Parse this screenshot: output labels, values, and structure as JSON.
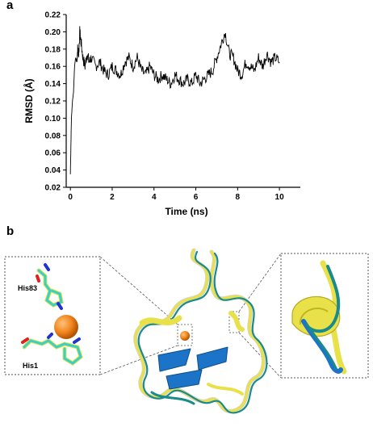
{
  "panels": {
    "a": "a",
    "b": "b"
  },
  "chart_data": {
    "type": "line",
    "xlabel": "Time (ns)",
    "ylabel": "RMSD (Å)",
    "xlim": [
      -0.2,
      11
    ],
    "ylim": [
      0.02,
      0.22
    ],
    "xticks": [
      0,
      2,
      4,
      6,
      8,
      10
    ],
    "yticks": [
      0.02,
      0.04,
      0.06,
      0.08,
      0.1,
      0.12,
      0.14,
      0.16,
      0.18,
      0.2,
      0.22
    ],
    "ytick_labels": [
      "0.02",
      "0.04",
      "0.06",
      "0.08",
      "0.10",
      "0.12",
      "0.14",
      "0.16",
      "0.18",
      "0.20",
      "0.22"
    ],
    "grid": false,
    "series": [
      {
        "color": "#000000",
        "x": [
          0,
          0.05,
          0.1,
          0.15,
          0.2,
          0.25,
          0.3,
          0.35,
          0.4,
          0.45,
          0.5,
          0.6,
          0.7,
          0.8,
          0.9,
          1.0,
          1.2,
          1.4,
          1.6,
          1.8,
          2.0,
          2.2,
          2.4,
          2.6,
          2.8,
          3.0,
          3.2,
          3.4,
          3.6,
          3.8,
          4.0,
          4.2,
          4.4,
          4.6,
          4.8,
          5.0,
          5.2,
          5.4,
          5.6,
          5.8,
          6.0,
          6.2,
          6.4,
          6.6,
          6.8,
          7.0,
          7.2,
          7.4,
          7.6,
          7.8,
          8.0,
          8.2,
          8.4,
          8.6,
          8.8,
          9.0,
          9.2,
          9.4,
          9.6,
          9.8,
          10.0
        ],
        "y": [
          0.035,
          0.1,
          0.12,
          0.13,
          0.16,
          0.17,
          0.165,
          0.18,
          0.175,
          0.2,
          0.19,
          0.17,
          0.16,
          0.175,
          0.165,
          0.17,
          0.16,
          0.165,
          0.155,
          0.15,
          0.16,
          0.155,
          0.15,
          0.165,
          0.17,
          0.16,
          0.17,
          0.155,
          0.15,
          0.16,
          0.15,
          0.145,
          0.15,
          0.145,
          0.14,
          0.15,
          0.145,
          0.14,
          0.145,
          0.14,
          0.15,
          0.14,
          0.145,
          0.15,
          0.155,
          0.17,
          0.185,
          0.2,
          0.175,
          0.17,
          0.155,
          0.15,
          0.165,
          0.16,
          0.155,
          0.17,
          0.16,
          0.175,
          0.165,
          0.17,
          0.165
        ]
      }
    ]
  },
  "structure": {
    "labels": {
      "his83": "His83",
      "his1": "His1"
    },
    "colors": {
      "yellow": "#e8e14a",
      "teal": "#1a8a8a",
      "blue": "#1b74c8",
      "cyan": "#39d0c8",
      "orange": "#f0841c",
      "gray": "#d9d4c0"
    }
  }
}
